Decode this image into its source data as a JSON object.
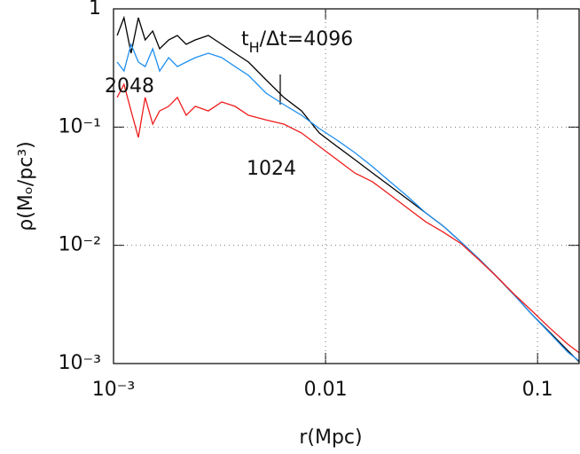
{
  "chart_data": {
    "type": "line",
    "xlabel": "r(Mpc)",
    "ylabel": "ρ(Mₒ/pc³)",
    "xscale": "log",
    "yscale": "log",
    "xlim": [
      0.001,
      0.157
    ],
    "ylim": [
      0.001,
      1
    ],
    "xticks": [
      {
        "value": 0.001,
        "label": "10⁻³"
      },
      0.01,
      0.1
    ],
    "yticks": [
      {
        "value": 0.001,
        "label": "10⁻³"
      },
      {
        "value": 0.01,
        "label": "10⁻²"
      },
      {
        "value": 0.1,
        "label": "10⁻¹"
      },
      1
    ],
    "grid": true,
    "annotation": [
      "t",
      "H",
      "/Δt=4096"
    ],
    "x": [
      0.00104,
      0.00112,
      0.00121,
      0.00131,
      0.00141,
      0.00153,
      0.00165,
      0.00182,
      0.002,
      0.0022,
      0.00243,
      0.0028,
      0.00324,
      0.00374,
      0.00433,
      0.00524,
      0.00636,
      0.00771,
      0.00935,
      0.01133,
      0.01374,
      0.01667,
      0.0202,
      0.0245,
      0.0297,
      0.036,
      0.0437,
      0.053,
      0.0642,
      0.0778,
      0.0944,
      0.1145,
      0.1388,
      0.1573
    ],
    "series": [
      {
        "color": "#000000",
        "values": [
          0.596,
          0.841,
          0.422,
          0.841,
          0.546,
          0.649,
          0.46,
          0.546,
          0.596,
          0.501,
          0.546,
          0.596,
          0.501,
          0.422,
          0.355,
          0.251,
          0.178,
          0.137,
          0.0891,
          0.0687,
          0.0531,
          0.0409,
          0.0316,
          0.0244,
          0.0188,
          0.0145,
          0.0106,
          0.00766,
          0.00543,
          0.00378,
          0.00258,
          0.00183,
          0.00129,
          0.00103
        ]
      },
      {
        "name": "2048",
        "color": "#1e8ff0",
        "values": [
          0.355,
          0.298,
          0.501,
          0.355,
          0.325,
          0.46,
          0.298,
          0.387,
          0.325,
          0.355,
          0.387,
          0.422,
          0.387,
          0.325,
          0.274,
          0.194,
          0.155,
          0.126,
          0.0971,
          0.0776,
          0.0609,
          0.0462,
          0.0344,
          0.0257,
          0.0188,
          0.0145,
          0.0106,
          0.00766,
          0.00543,
          0.00378,
          0.00258,
          0.0018,
          0.00125,
          0.00105
        ]
      },
      {
        "name": "1024",
        "color": "#ee1c1c",
        "values": [
          0.178,
          0.23,
          0.137,
          0.0817,
          0.178,
          0.106,
          0.137,
          0.15,
          0.178,
          0.126,
          0.15,
          0.137,
          0.163,
          0.15,
          0.126,
          0.115,
          0.106,
          0.0891,
          0.0687,
          0.0531,
          0.0409,
          0.0344,
          0.0266,
          0.0205,
          0.0158,
          0.0129,
          0.0103,
          0.00753,
          0.00543,
          0.00384,
          0.00277,
          0.00199,
          0.00146,
          0.00123
        ]
      }
    ]
  }
}
